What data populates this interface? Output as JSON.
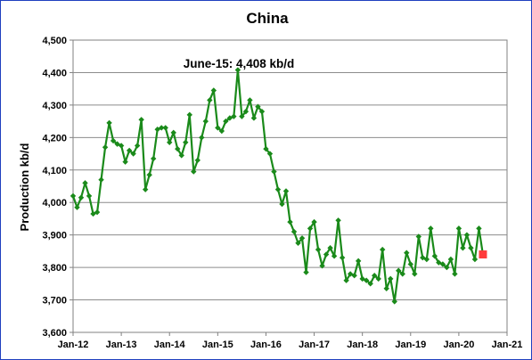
{
  "chart_data": {
    "type": "line",
    "title": "China",
    "ylabel": "Production kb/d",
    "xlabel": "",
    "ylim": [
      3600,
      4500
    ],
    "y_ticks": [
      "3,600",
      "3,700",
      "3,800",
      "3,900",
      "4,000",
      "4,100",
      "4,200",
      "4,300",
      "4,400",
      "4,500"
    ],
    "x_ticks": [
      "Jan-12",
      "Jan-13",
      "Jan-14",
      "Jan-15",
      "Jan-16",
      "Jan-17",
      "Jan-18",
      "Jan-19",
      "Jan-20",
      "Jan-21"
    ],
    "annotation": "June-15: 4,408 kb/d",
    "grid": "horizontal",
    "legend": "none",
    "series_color": "#1a8a1a",
    "highlight_color": "#ff3b3b",
    "series": [
      {
        "start": "2012-01",
        "frequency": "monthly",
        "values": [
          4020,
          3985,
          4015,
          4060,
          4020,
          3965,
          3970,
          4070,
          4170,
          4245,
          4190,
          4180,
          4175,
          4125,
          4160,
          4150,
          4175,
          4255,
          4040,
          4085,
          4135,
          4225,
          4230,
          4230,
          4185,
          4215,
          4165,
          4145,
          4185,
          4270,
          4095,
          4130,
          4200,
          4250,
          4315,
          4345,
          4230,
          4220,
          4250,
          4260,
          4265,
          4408,
          4265,
          4280,
          4315,
          4260,
          4295,
          4280,
          4165,
          4150,
          4095,
          4040,
          3995,
          4035,
          3940,
          3910,
          3875,
          3890,
          3785,
          3920,
          3940,
          3855,
          3805,
          3840,
          3860,
          3835,
          3945,
          3830,
          3760,
          3780,
          3775,
          3820,
          3765,
          3760,
          3750,
          3775,
          3765,
          3855,
          3735,
          3765,
          3695,
          3790,
          3780,
          3845,
          3810,
          3780,
          3895,
          3830,
          3825,
          3920,
          3835,
          3815,
          3810,
          3800,
          3825,
          3780,
          3920,
          3860,
          3900,
          3860,
          3825,
          3920,
          3840
        ]
      }
    ],
    "highlight_point": {
      "date": "2020-07",
      "value": 3840
    }
  }
}
